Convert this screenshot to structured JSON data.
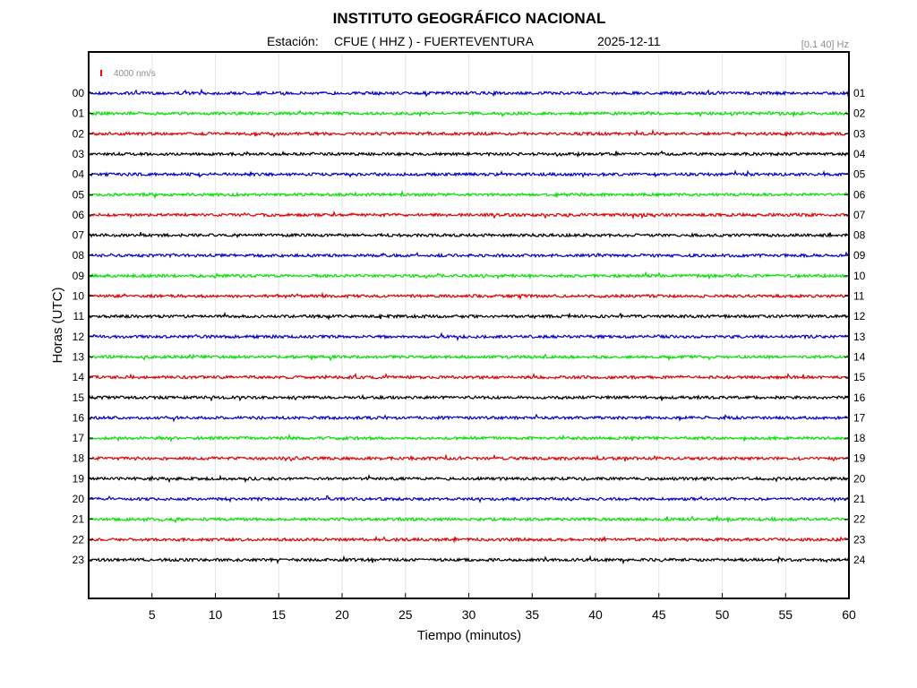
{
  "header": {
    "title": "INSTITUTO GEOGRÁFICO NACIONAL",
    "station_prefix": "Estación:",
    "station": "CFUE ( HHZ ) - FUERTEVENTURA",
    "date": "2025-12-11",
    "filter": "[0.1 40] Hz"
  },
  "scale": {
    "label": "4000 nm/s",
    "color": "#ff0000"
  },
  "chart_data": {
    "type": "line",
    "title": "INSTITUTO GEOGRÁFICO NACIONAL",
    "xlabel": "Tiempo (minutos)",
    "ylabel": "Horas (UTC)",
    "xlim": [
      0,
      60
    ],
    "x_ticks": [
      "5",
      "10",
      "15",
      "20",
      "25",
      "30",
      "35",
      "40",
      "45",
      "50",
      "55",
      "60"
    ],
    "x_tick_values": [
      5,
      10,
      15,
      20,
      25,
      30,
      35,
      40,
      45,
      50,
      55,
      60
    ],
    "left_labels": [
      "00",
      "01",
      "02",
      "03",
      "04",
      "05",
      "06",
      "07",
      "08",
      "09",
      "10",
      "11",
      "12",
      "13",
      "14",
      "15",
      "16",
      "17",
      "18",
      "19",
      "20",
      "21",
      "22",
      "23"
    ],
    "right_labels": [
      "01",
      "02",
      "03",
      "04",
      "05",
      "06",
      "07",
      "08",
      "09",
      "10",
      "11",
      "12",
      "13",
      "14",
      "15",
      "16",
      "17",
      "18",
      "19",
      "20",
      "21",
      "22",
      "23",
      "24"
    ],
    "color_cycle": [
      "#0000cc",
      "#00e000",
      "#dd0000",
      "#000000"
    ],
    "grid": true
  }
}
